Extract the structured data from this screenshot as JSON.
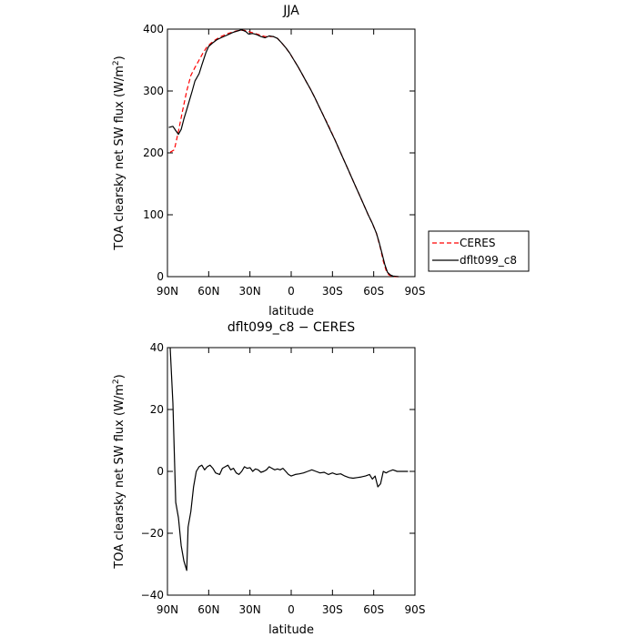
{
  "chart_data": [
    {
      "type": "line",
      "title": "JJA",
      "xlabel": "latitude",
      "ylabel_text": "TOA clearsky net SW flux (W/m",
      "ylabel_sup": "2",
      "ylabel_close": ")",
      "xlim": [
        90,
        -90
      ],
      "ylim": [
        0,
        400
      ],
      "x_ticks": [
        {
          "value": 90,
          "label": "90N"
        },
        {
          "value": 60,
          "label": "60N"
        },
        {
          "value": 30,
          "label": "30N"
        },
        {
          "value": 0,
          "label": "0"
        },
        {
          "value": -30,
          "label": "30S"
        },
        {
          "value": -60,
          "label": "60S"
        },
        {
          "value": -90,
          "label": "90S"
        }
      ],
      "y_ticks": [
        0,
        100,
        200,
        300,
        400
      ],
      "legend_position": "right",
      "series": [
        {
          "name": "CERES",
          "color": "#ff0000",
          "dash": true,
          "points": [
            [
              88,
              201
            ],
            [
              85,
              205
            ],
            [
              82,
              235
            ],
            [
              79,
              268
            ],
            [
              76,
              300
            ],
            [
              73,
              325
            ],
            [
              70,
              338
            ],
            [
              67,
              350
            ],
            [
              64,
              362
            ],
            [
              61,
              372
            ],
            [
              58,
              378
            ],
            [
              55,
              383
            ],
            [
              52,
              387
            ],
            [
              49,
              390
            ],
            [
              46,
              393
            ],
            [
              43,
              395
            ],
            [
              40,
              397
            ],
            [
              37,
              398
            ],
            [
              34,
              398
            ],
            [
              31,
              396
            ],
            [
              28,
              394
            ],
            [
              25,
              392
            ],
            [
              22,
              390
            ],
            [
              19,
              388
            ],
            [
              16,
              388
            ],
            [
              13,
              388
            ],
            [
              10,
              385
            ],
            [
              7,
              378
            ],
            [
              4,
              370
            ],
            [
              1,
              361
            ],
            [
              -2,
              350
            ],
            [
              -5,
              339
            ],
            [
              -8,
              327
            ],
            [
              -11,
              315
            ],
            [
              -14,
              303
            ],
            [
              -17,
              290
            ],
            [
              -20,
              276
            ],
            [
              -23,
              262
            ],
            [
              -26,
              249
            ],
            [
              -29,
              235
            ],
            [
              -32,
              220
            ],
            [
              -35,
              205
            ],
            [
              -38,
              190
            ],
            [
              -41,
              175
            ],
            [
              -44,
              160
            ],
            [
              -47,
              145
            ],
            [
              -50,
              130
            ],
            [
              -53,
              115
            ],
            [
              -56,
              100
            ],
            [
              -59,
              86
            ],
            [
              -62,
              70
            ],
            [
              -65,
              45
            ],
            [
              -67,
              25
            ],
            [
              -69,
              10
            ],
            [
              -71,
              3
            ],
            [
              -74,
              0
            ],
            [
              -78,
              0
            ]
          ]
        },
        {
          "name": "dflt099_c8",
          "color": "#000000",
          "dash": false,
          "points": [
            [
              89,
              241
            ],
            [
              86,
              243
            ],
            [
              84,
              236
            ],
            [
              82,
              230
            ],
            [
              80,
              238
            ],
            [
              78,
              255
            ],
            [
              76,
              270
            ],
            [
              74,
              285
            ],
            [
              72,
              300
            ],
            [
              70,
              316
            ],
            [
              67,
              328
            ],
            [
              65,
              342
            ],
            [
              62,
              362
            ],
            [
              60,
              372
            ],
            [
              57,
              378
            ],
            [
              54,
              383
            ],
            [
              51,
              386
            ],
            [
              48,
              389
            ],
            [
              45,
              392
            ],
            [
              42,
              395
            ],
            [
              39,
              397
            ],
            [
              36,
              399
            ],
            [
              33,
              396
            ],
            [
              31,
              392
            ],
            [
              28,
              393
            ],
            [
              25,
              391
            ],
            [
              22,
              388
            ],
            [
              19,
              386
            ],
            [
              16,
              389
            ],
            [
              13,
              388
            ],
            [
              10,
              385
            ],
            [
              7,
              378
            ],
            [
              4,
              370
            ],
            [
              1,
              361
            ],
            [
              -2,
              350
            ],
            [
              -5,
              339
            ],
            [
              -8,
              327
            ],
            [
              -11,
              315
            ],
            [
              -14,
              303
            ],
            [
              -17,
              290
            ],
            [
              -20,
              276
            ],
            [
              -23,
              262
            ],
            [
              -26,
              248
            ],
            [
              -29,
              234
            ],
            [
              -32,
              220
            ],
            [
              -35,
              205
            ],
            [
              -38,
              190
            ],
            [
              -41,
              175
            ],
            [
              -44,
              160
            ],
            [
              -47,
              145
            ],
            [
              -50,
              130
            ],
            [
              -53,
              115
            ],
            [
              -56,
              100
            ],
            [
              -59,
              86
            ],
            [
              -62,
              70
            ],
            [
              -64,
              55
            ],
            [
              -66,
              38
            ],
            [
              -68,
              20
            ],
            [
              -70,
              7
            ],
            [
              -72,
              3
            ],
            [
              -74,
              1
            ],
            [
              -78,
              0
            ]
          ]
        }
      ]
    },
    {
      "type": "line",
      "title": "dflt099_c8 − CERES",
      "xlabel": "latitude",
      "ylabel_text": "TOA clearsky net SW flux (W/m",
      "ylabel_sup": "2",
      "ylabel_close": ")",
      "xlim": [
        90,
        -90
      ],
      "ylim": [
        -40,
        40
      ],
      "x_ticks": [
        {
          "value": 90,
          "label": "90N"
        },
        {
          "value": 60,
          "label": "60N"
        },
        {
          "value": 30,
          "label": "30N"
        },
        {
          "value": 0,
          "label": "0"
        },
        {
          "value": -30,
          "label": "30S"
        },
        {
          "value": -60,
          "label": "60S"
        },
        {
          "value": -90,
          "label": "90S"
        }
      ],
      "y_ticks": [
        -40,
        -20,
        0,
        20,
        40
      ],
      "series": [
        {
          "color": "#000000",
          "dash": false,
          "points": [
            [
              88,
              40
            ],
            [
              86,
              22
            ],
            [
              84,
              -10
            ],
            [
              82,
              -15
            ],
            [
              80,
              -24
            ],
            [
              78,
              -29
            ],
            [
              76,
              -32
            ],
            [
              75,
              -18
            ],
            [
              73,
              -13
            ],
            [
              71,
              -5
            ],
            [
              69,
              0
            ],
            [
              67,
              1.5
            ],
            [
              65,
              2
            ],
            [
              63,
              0.5
            ],
            [
              61,
              1.5
            ],
            [
              59,
              2
            ],
            [
              57,
              1
            ],
            [
              55,
              -0.5
            ],
            [
              52,
              -1
            ],
            [
              50,
              1
            ],
            [
              48,
              1.5
            ],
            [
              46,
              2
            ],
            [
              44,
              0.5
            ],
            [
              42,
              1
            ],
            [
              40,
              -0.5
            ],
            [
              38,
              -1
            ],
            [
              36,
              0
            ],
            [
              34,
              1.5
            ],
            [
              32,
              1
            ],
            [
              30,
              1.2
            ],
            [
              28,
              0
            ],
            [
              26,
              0.8
            ],
            [
              24,
              0.5
            ],
            [
              22,
              -0.3
            ],
            [
              20,
              0
            ],
            [
              18,
              0.5
            ],
            [
              16,
              1.5
            ],
            [
              14,
              1
            ],
            [
              12,
              0.5
            ],
            [
              10,
              0.8
            ],
            [
              8,
              0.5
            ],
            [
              6,
              1
            ],
            [
              4,
              0
            ],
            [
              2,
              -1
            ],
            [
              0,
              -1.5
            ],
            [
              -3,
              -1
            ],
            [
              -6,
              -0.8
            ],
            [
              -9,
              -0.5
            ],
            [
              -12,
              0
            ],
            [
              -15,
              0.5
            ],
            [
              -18,
              0
            ],
            [
              -21,
              -0.5
            ],
            [
              -24,
              -0.3
            ],
            [
              -27,
              -1
            ],
            [
              -30,
              -0.5
            ],
            [
              -33,
              -1
            ],
            [
              -36,
              -0.8
            ],
            [
              -39,
              -1.5
            ],
            [
              -42,
              -2
            ],
            [
              -45,
              -2.2
            ],
            [
              -48,
              -2
            ],
            [
              -51,
              -1.8
            ],
            [
              -54,
              -1.5
            ],
            [
              -57,
              -1
            ],
            [
              -59,
              -2.5
            ],
            [
              -61,
              -1.5
            ],
            [
              -63,
              -5
            ],
            [
              -65,
              -4
            ],
            [
              -67,
              0
            ],
            [
              -69,
              -0.5
            ],
            [
              -71,
              0
            ],
            [
              -74,
              0.5
            ],
            [
              -77,
              0
            ],
            [
              -80,
              0
            ],
            [
              -85,
              0
            ]
          ]
        }
      ]
    }
  ]
}
